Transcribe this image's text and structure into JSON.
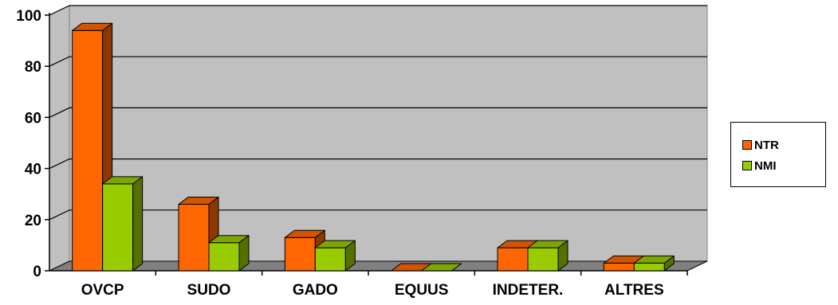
{
  "chart_data": {
    "type": "bar",
    "categories": [
      "OVCP",
      "SUDO",
      "GADO",
      "EQUUS",
      "INDETER.",
      "ALTRES"
    ],
    "series": [
      {
        "name": "NTR",
        "values": [
          94,
          26,
          13,
          0,
          9,
          3
        ],
        "color": "#FF6600"
      },
      {
        "name": "NMI",
        "values": [
          34,
          11,
          9,
          0,
          9,
          3
        ],
        "color": "#99CC00"
      }
    ],
    "ylim": [
      0,
      100
    ],
    "yticks": [
      "0",
      "20",
      "40",
      "60",
      "80",
      "100"
    ],
    "grid": true,
    "legend_position": "right",
    "style": "3d-clustered-column",
    "wall_color": "#C0C0C0",
    "floor_color": "#808080"
  }
}
